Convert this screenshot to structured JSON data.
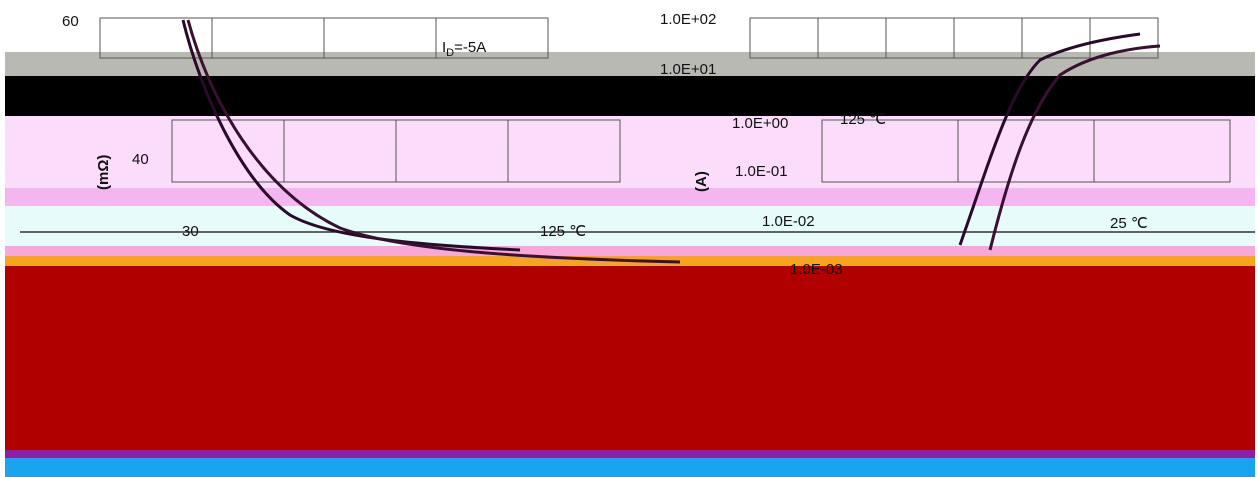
{
  "left_chart": {
    "y_labels": [
      "60",
      "40",
      "30"
    ],
    "id_label": {
      "main": "I",
      "sub": "D",
      "rest": "=-5A"
    },
    "y_unit": "(mΩ)",
    "curve_label": "125 ℃"
  },
  "right_chart": {
    "y_labels": [
      "1.0E+02",
      "1.0E+01",
      "1.0E+00",
      "1.0E-01",
      "1.0E-02",
      "1.0E-03"
    ],
    "y_unit": "(A)",
    "curve_labels": [
      "125 ℃",
      "25 ℃"
    ]
  }
}
